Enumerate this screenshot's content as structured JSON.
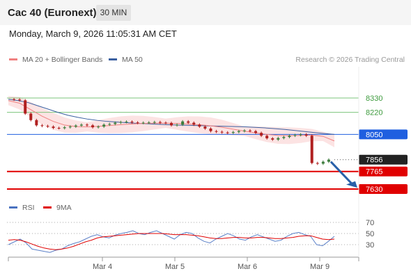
{
  "header": {
    "title": "Cac 40 (Euronext)",
    "timeframe": "30 MIN",
    "datetime": "Monday, March 9, 2026 11:05:31 AM CET"
  },
  "legend": {
    "ma20": "MA 20 + Bollinger Bands",
    "ma50": "MA 50",
    "credit": "Research © 2026 Trading Central"
  },
  "rsi_legend": {
    "rsi": "RSI",
    "ma": "9MA"
  },
  "colors": {
    "ma20": "#f08080",
    "ma50": "#3a5fa0",
    "band": "#fbd9d9",
    "resistance": "#7bc47b",
    "pivot": "#1f5fe0",
    "support": "#e00000",
    "price_label": "#222222",
    "up": "#3d7d3d",
    "down": "#b02020",
    "arrow": "#2860a8"
  },
  "chart_data": [
    {
      "type": "candlestick",
      "title": "",
      "x_ticks": [
        "Mar 4",
        "Mar 5",
        "Mar 6",
        "Mar 9"
      ],
      "ylim": [
        7600,
        8400
      ],
      "price_path": [
        8320,
        8318,
        8312,
        8210,
        8160,
        8120,
        8115,
        8110,
        8100,
        8098,
        8105,
        8110,
        8118,
        8125,
        8120,
        8105,
        8110,
        8125,
        8130,
        8140,
        8145,
        8148,
        8142,
        8138,
        8140,
        8142,
        8145,
        8140,
        8138,
        8120,
        8125,
        8150,
        8140,
        8125,
        8110,
        8095,
        8075,
        8070,
        8065,
        8062,
        8068,
        8075,
        8080,
        8075,
        8062,
        8040,
        8020,
        8010,
        8022,
        8030,
        8040,
        8045,
        8050,
        8040,
        7830,
        7825,
        7840,
        7856
      ],
      "ma50_path": [
        8320,
        8310,
        8295,
        8270,
        8245,
        8220,
        8198,
        8182,
        8168,
        8158,
        8150,
        8145,
        8140,
        8135,
        8132,
        8128,
        8125,
        8122,
        8120,
        8118,
        8116,
        8114,
        8112,
        8110,
        8108,
        8104,
        8100,
        8094,
        8088,
        8080,
        8072,
        8064,
        8057,
        8050
      ],
      "ma20_path": [
        8310,
        8290,
        8240,
        8190,
        8150,
        8122,
        8110,
        8108,
        8112,
        8118,
        8125,
        8130,
        8134,
        8136,
        8136,
        8134,
        8130,
        8124,
        8116,
        8105,
        8090,
        8075,
        8062,
        8050,
        8042,
        8040,
        8042,
        8045,
        8035,
        8000
      ],
      "levels": [
        {
          "value": 8330,
          "label": "8330",
          "kind": "resistance"
        },
        {
          "value": 8220,
          "label": "8220",
          "kind": "resistance"
        },
        {
          "value": 8050,
          "label": "8050",
          "kind": "pivot"
        },
        {
          "value": 7856,
          "label": "7856",
          "kind": "last"
        },
        {
          "value": 7765,
          "label": "7765",
          "kind": "support"
        },
        {
          "value": 7630,
          "label": "7630",
          "kind": "support"
        }
      ]
    },
    {
      "type": "line",
      "title": "",
      "ylim": [
        10,
        80
      ],
      "y_ticks": [
        70,
        50,
        30
      ],
      "series": [
        {
          "name": "RSI",
          "values": [
            30,
            35,
            40,
            33,
            22,
            20,
            18,
            16,
            20,
            22,
            28,
            32,
            35,
            40,
            45,
            48,
            44,
            42,
            47,
            50,
            52,
            55,
            50,
            48,
            52,
            55,
            50,
            45,
            40,
            48,
            52,
            50,
            42,
            36,
            33,
            40,
            45,
            50,
            46,
            40,
            38,
            44,
            48,
            44,
            40,
            36,
            38,
            45,
            50,
            52,
            48,
            45,
            30,
            28,
            36,
            45
          ]
        },
        {
          "name": "9MA",
          "values": [
            38,
            39,
            38,
            35,
            31,
            27,
            24,
            22,
            21,
            22,
            24,
            27,
            31,
            35,
            38,
            42,
            44,
            45,
            46,
            47,
            48,
            49,
            50,
            50,
            50,
            50,
            50,
            49,
            48,
            48,
            48,
            47,
            46,
            44,
            42,
            41,
            41,
            42,
            43,
            43,
            42,
            42,
            43,
            43,
            42,
            41,
            41,
            42,
            43,
            45,
            46,
            46,
            43,
            40,
            39,
            40
          ]
        }
      ]
    }
  ]
}
